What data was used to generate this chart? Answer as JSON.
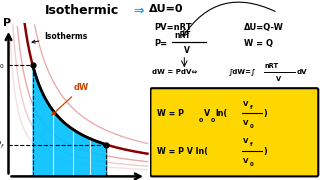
{
  "bg_color": "#ffffff",
  "fill_color": "#00BFFF",
  "dW_color": "#cc4400",
  "box_color": "#FFD700",
  "arrow_color": "#00AAFF",
  "dark_red": "#8B0000",
  "V0": 1.0,
  "Vf": 3.5,
  "P0": 4.0,
  "Pf": 1.14,
  "x_range": [
    0,
    5
  ],
  "y_range": [
    0,
    5.5
  ],
  "isotherm_consts": [
    1.2,
    1.8,
    2.6,
    4.0,
    5.8
  ],
  "isotherm_alphas": [
    0.22,
    0.3,
    0.42,
    1.0,
    0.4
  ],
  "isotherm_colors": [
    "#cc7777",
    "#cc5555",
    "#cc3333",
    "#8B0000",
    "#cc3333"
  ]
}
